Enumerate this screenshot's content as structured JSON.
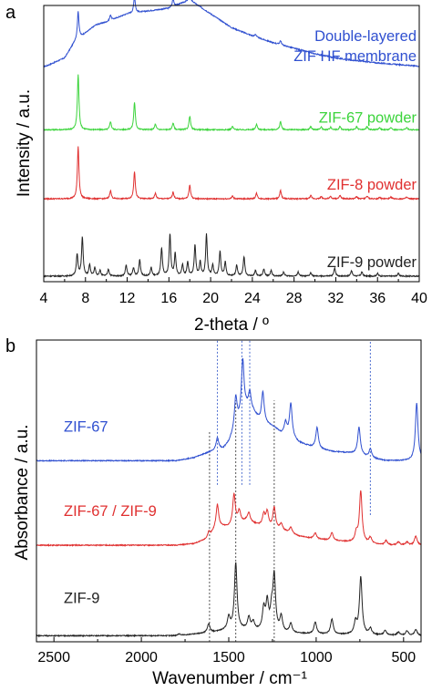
{
  "chart_data": [
    {
      "panel_label": "a",
      "type": "line",
      "xlabel": "2-theta / º",
      "ylabel": "Intensity / a.u.",
      "xlim": [
        4,
        40
      ],
      "x_ticks": [
        4,
        8,
        12,
        16,
        20,
        24,
        28,
        32,
        36,
        40
      ],
      "grid": false,
      "legend": "inline labels at right of each trace",
      "series": [
        {
          "name": "Double-layered ZIF HF membrane",
          "label_lines": [
            "Double-layered",
            "ZIF HF membrane"
          ],
          "color": "#3050d0",
          "offset": 0.78,
          "background": [
            [
              4.2,
              0.0
            ],
            [
              6,
              0.03
            ],
            [
              7,
              0.09
            ],
            [
              8,
              0.12
            ],
            [
              9,
              0.15
            ],
            [
              10,
              0.16
            ],
            [
              12,
              0.19
            ],
            [
              14,
              0.2
            ],
            [
              16,
              0.21
            ],
            [
              18,
              0.24
            ],
            [
              20,
              0.19
            ],
            [
              22,
              0.14
            ],
            [
              24,
              0.11
            ],
            [
              26,
              0.085
            ],
            [
              28,
              0.065
            ],
            [
              30,
              0.045
            ],
            [
              32,
              0.03
            ],
            [
              34,
              0.02
            ],
            [
              36,
              0.012
            ],
            [
              38,
              0.006
            ],
            [
              40,
              0.0
            ]
          ],
          "peaks": [
            [
              7.3,
              0.1
            ],
            [
              10.4,
              0.02
            ],
            [
              12.7,
              0.06
            ],
            [
              16.4,
              0.03
            ],
            [
              18.0,
              0.02
            ],
            [
              24.3,
              0.01
            ],
            [
              26.7,
              0.015
            ]
          ]
        },
        {
          "name": "ZIF-67 powder",
          "label_lines": [
            "ZIF-67 powder"
          ],
          "color": "#3cd43c",
          "offset": 0.55,
          "background": [
            [
              4.2,
              0.0
            ],
            [
              40,
              0.0
            ]
          ],
          "peaks": [
            [
              7.3,
              0.2
            ],
            [
              10.4,
              0.03
            ],
            [
              12.7,
              0.1
            ],
            [
              14.7,
              0.02
            ],
            [
              16.4,
              0.025
            ],
            [
              18.0,
              0.05
            ],
            [
              22.1,
              0.012
            ],
            [
              24.4,
              0.02
            ],
            [
              26.7,
              0.03
            ],
            [
              29.6,
              0.012
            ],
            [
              30.6,
              0.01
            ],
            [
              31.5,
              0.01
            ],
            [
              32.4,
              0.012
            ],
            [
              34.0,
              0.01
            ],
            [
              35.0,
              0.012
            ],
            [
              36.2,
              0.008
            ],
            [
              37.3,
              0.008
            ],
            [
              38.8,
              0.008
            ]
          ]
        },
        {
          "name": "ZIF-8 powder",
          "label_lines": [
            "ZIF-8 powder"
          ],
          "color": "#e03030",
          "offset": 0.3,
          "background": [
            [
              4.2,
              0.0
            ],
            [
              40,
              0.0
            ]
          ],
          "peaks": [
            [
              7.3,
              0.19
            ],
            [
              10.4,
              0.03
            ],
            [
              12.7,
              0.1
            ],
            [
              14.7,
              0.02
            ],
            [
              16.4,
              0.025
            ],
            [
              18.0,
              0.05
            ],
            [
              22.1,
              0.01
            ],
            [
              24.4,
              0.02
            ],
            [
              26.7,
              0.03
            ],
            [
              29.6,
              0.012
            ],
            [
              30.6,
              0.008
            ],
            [
              31.5,
              0.008
            ],
            [
              32.4,
              0.012
            ],
            [
              34.0,
              0.008
            ],
            [
              35.0,
              0.01
            ],
            [
              36.2,
              0.006
            ],
            [
              37.3,
              0.006
            ],
            [
              38.8,
              0.006
            ]
          ]
        },
        {
          "name": "ZIF-9 powder",
          "label_lines": [
            "ZIF-9 powder"
          ],
          "color": "#222222",
          "offset": 0.02,
          "background": [
            [
              4.2,
              0.0
            ],
            [
              40,
              0.0
            ]
          ],
          "peaks": [
            [
              7.2,
              0.08
            ],
            [
              7.7,
              0.14
            ],
            [
              8.4,
              0.04
            ],
            [
              8.9,
              0.03
            ],
            [
              9.4,
              0.02
            ],
            [
              10.2,
              0.025
            ],
            [
              11.9,
              0.04
            ],
            [
              12.6,
              0.03
            ],
            [
              13.2,
              0.06
            ],
            [
              14.3,
              0.03
            ],
            [
              15.3,
              0.1
            ],
            [
              16.1,
              0.15
            ],
            [
              16.6,
              0.08
            ],
            [
              17.3,
              0.04
            ],
            [
              17.8,
              0.05
            ],
            [
              18.5,
              0.11
            ],
            [
              19.0,
              0.05
            ],
            [
              19.6,
              0.15
            ],
            [
              20.2,
              0.04
            ],
            [
              20.9,
              0.09
            ],
            [
              21.4,
              0.05
            ],
            [
              22.5,
              0.04
            ],
            [
              23.2,
              0.07
            ],
            [
              24.3,
              0.02
            ],
            [
              25.1,
              0.025
            ],
            [
              25.8,
              0.02
            ],
            [
              27.0,
              0.015
            ],
            [
              28.4,
              0.015
            ],
            [
              29.6,
              0.012
            ],
            [
              31.9,
              0.03
            ],
            [
              33.5,
              0.02
            ],
            [
              34.5,
              0.015
            ],
            [
              36.0,
              0.01
            ],
            [
              38.0,
              0.01
            ]
          ]
        }
      ]
    },
    {
      "panel_label": "b",
      "type": "line",
      "xlabel": "Wavenumber / cm⁻¹",
      "ylabel": "Absorbance / a.u.",
      "xlim": [
        2600,
        400
      ],
      "x_reversed": true,
      "x_ticks": [
        2500,
        2000,
        1500,
        1000,
        500
      ],
      "grid": false,
      "legend": "inline labels at left of each trace",
      "reference_lines": [
        {
          "x": 1610,
          "color": "#555555",
          "y_range": [
            0.0,
            0.7
          ]
        },
        {
          "x": 1460,
          "color": "#555555",
          "y_range": [
            0.0,
            0.8
          ]
        },
        {
          "x": 1240,
          "color": "#555555",
          "y_range": [
            0.0,
            0.8
          ]
        },
        {
          "x": 1565,
          "color": "#5070d0",
          "y_range": [
            0.52,
            1.0
          ]
        },
        {
          "x": 1425,
          "color": "#5070d0",
          "y_range": [
            0.52,
            1.0
          ]
        },
        {
          "x": 1380,
          "color": "#5070d0",
          "y_range": [
            0.52,
            1.0
          ]
        },
        {
          "x": 690,
          "color": "#5070d0",
          "y_range": [
            0.42,
            1.0
          ]
        }
      ],
      "series": [
        {
          "name": "ZIF-67",
          "label_lines": [
            "ZIF-67"
          ],
          "color": "#3050d0",
          "offset": 0.6,
          "background": [
            [
              2600,
              0.0
            ],
            [
              1800,
              0.0
            ],
            [
              1700,
              0.01
            ],
            [
              1600,
              0.03
            ],
            [
              1530,
              0.04
            ],
            [
              1500,
              0.06
            ],
            [
              1450,
              0.12
            ],
            [
              1400,
              0.17
            ],
            [
              1360,
              0.16
            ],
            [
              1320,
              0.13
            ],
            [
              1280,
              0.12
            ],
            [
              1240,
              0.11
            ],
            [
              1200,
              0.09
            ],
            [
              1150,
              0.08
            ],
            [
              1100,
              0.06
            ],
            [
              1000,
              0.04
            ],
            [
              900,
              0.03
            ],
            [
              800,
              0.025
            ],
            [
              750,
              0.02
            ],
            [
              700,
              0.01
            ],
            [
              600,
              0.0
            ],
            [
              400,
              0.0
            ]
          ],
          "peaks": [
            [
              1565,
              0.04
            ],
            [
              1460,
              0.1
            ],
            [
              1420,
              0.18
            ],
            [
              1380,
              0.06
            ],
            [
              1305,
              0.1
            ],
            [
              1175,
              0.04
            ],
            [
              1145,
              0.11
            ],
            [
              995,
              0.07
            ],
            [
              755,
              0.09
            ],
            [
              690,
              0.03
            ],
            [
              425,
              0.19
            ]
          ]
        },
        {
          "name": "ZIF-67 / ZIF-9",
          "label_lines": [
            "ZIF-67 / ZIF-9"
          ],
          "color": "#e03030",
          "offset": 0.32,
          "background": [
            [
              2600,
              0.0
            ],
            [
              1800,
              0.0
            ],
            [
              1700,
              0.005
            ],
            [
              1620,
              0.02
            ],
            [
              1580,
              0.05
            ],
            [
              1540,
              0.06
            ],
            [
              1500,
              0.06
            ],
            [
              1450,
              0.07
            ],
            [
              1400,
              0.08
            ],
            [
              1300,
              0.06
            ],
            [
              1200,
              0.05
            ],
            [
              1100,
              0.03
            ],
            [
              1000,
              0.02
            ],
            [
              800,
              0.01
            ],
            [
              600,
              0.0
            ],
            [
              400,
              0.0
            ]
          ],
          "peaks": [
            [
              1615,
              0.02
            ],
            [
              1565,
              0.08
            ],
            [
              1470,
              0.1
            ],
            [
              1440,
              0.04
            ],
            [
              1385,
              0.03
            ],
            [
              1300,
              0.04
            ],
            [
              1280,
              0.05
            ],
            [
              1240,
              0.07
            ],
            [
              1200,
              0.02
            ],
            [
              1145,
              0.02
            ],
            [
              1005,
              0.02
            ],
            [
              910,
              0.025
            ],
            [
              770,
              0.03
            ],
            [
              745,
              0.17
            ],
            [
              690,
              0.02
            ],
            [
              600,
              0.015
            ],
            [
              530,
              0.01
            ],
            [
              480,
              0.01
            ],
            [
              430,
              0.03
            ]
          ]
        },
        {
          "name": "ZIF-9",
          "label_lines": [
            "ZIF-9"
          ],
          "color": "#222222",
          "offset": 0.02,
          "background": [
            [
              2600,
              0.0
            ],
            [
              1800,
              0.0
            ],
            [
              1600,
              0.01
            ],
            [
              1500,
              0.02
            ],
            [
              1400,
              0.02
            ],
            [
              1300,
              0.015
            ],
            [
              1200,
              0.01
            ],
            [
              1000,
              0.005
            ],
            [
              400,
              0.0
            ]
          ],
          "peaks": [
            [
              1785,
              0.005
            ],
            [
              1615,
              0.03
            ],
            [
              1500,
              0.04
            ],
            [
              1460,
              0.22
            ],
            [
              1385,
              0.04
            ],
            [
              1360,
              0.025
            ],
            [
              1300,
              0.07
            ],
            [
              1280,
              0.09
            ],
            [
              1255,
              0.06
            ],
            [
              1240,
              0.18
            ],
            [
              1200,
              0.05
            ],
            [
              1145,
              0.03
            ],
            [
              1005,
              0.04
            ],
            [
              910,
              0.05
            ],
            [
              775,
              0.04
            ],
            [
              745,
              0.19
            ],
            [
              690,
              0.02
            ],
            [
              605,
              0.015
            ],
            [
              530,
              0.01
            ],
            [
              480,
              0.015
            ],
            [
              430,
              0.02
            ]
          ]
        }
      ]
    }
  ]
}
